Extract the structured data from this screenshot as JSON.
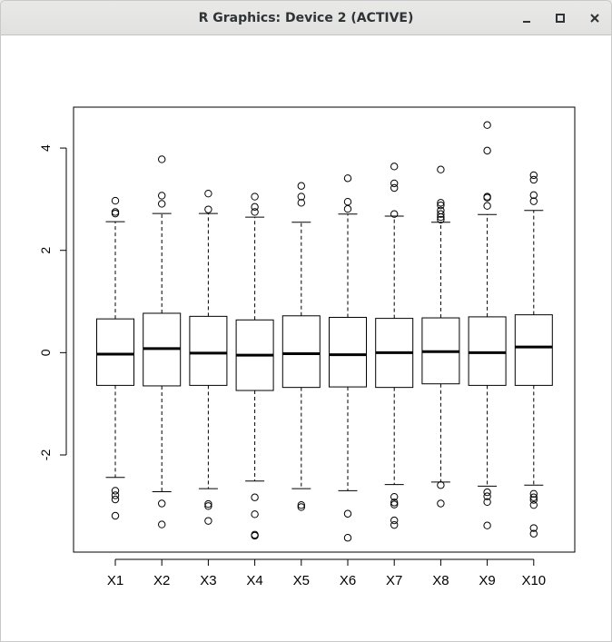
{
  "window": {
    "title": "R Graphics: Device 2 (ACTIVE)",
    "buttons": [
      {
        "name": "minimize",
        "icon": "minimize-icon"
      },
      {
        "name": "maximize",
        "icon": "maximize-icon"
      },
      {
        "name": "close",
        "icon": "close-icon"
      }
    ]
  },
  "chart_data": {
    "type": "boxplot",
    "title": "",
    "xlabel": "",
    "ylabel": "",
    "ylim": [
      -3.9,
      4.8
    ],
    "yticks": [
      -2,
      0,
      2,
      4
    ],
    "ytick_labels": [
      "-2",
      "0",
      "2",
      "4"
    ],
    "categories": [
      "X1",
      "X2",
      "X3",
      "X4",
      "X5",
      "X6",
      "X7",
      "X8",
      "X9",
      "X10"
    ],
    "boxes": [
      {
        "name": "X1",
        "whisker_low": -2.44,
        "q1": -0.64,
        "median": -0.03,
        "q3": 0.66,
        "whisker_high": 2.56,
        "outliers": [
          2.97,
          2.75,
          2.72,
          -2.7,
          -2.79,
          -2.87,
          -3.19
        ]
      },
      {
        "name": "X2",
        "whisker_low": -2.72,
        "q1": -0.65,
        "median": 0.08,
        "q3": 0.77,
        "whisker_high": 2.72,
        "outliers": [
          3.78,
          3.07,
          2.91,
          -2.95,
          -3.36
        ]
      },
      {
        "name": "X3",
        "whisker_low": -2.66,
        "q1": -0.64,
        "median": -0.01,
        "q3": 0.71,
        "whisker_high": 2.72,
        "outliers": [
          3.11,
          2.8,
          -2.96,
          -3.0,
          -3.29
        ]
      },
      {
        "name": "X4",
        "whisker_low": -2.51,
        "q1": -0.74,
        "median": -0.05,
        "q3": 0.64,
        "whisker_high": 2.65,
        "outliers": [
          3.05,
          2.85,
          2.75,
          -2.83,
          -3.16,
          -3.56,
          -3.58
        ]
      },
      {
        "name": "X5",
        "whisker_low": -2.66,
        "q1": -0.68,
        "median": -0.02,
        "q3": 0.72,
        "whisker_high": 2.55,
        "outliers": [
          3.26,
          3.05,
          2.93,
          -2.98,
          -3.02
        ]
      },
      {
        "name": "X6",
        "whisker_low": -2.7,
        "q1": -0.67,
        "median": -0.04,
        "q3": 0.69,
        "whisker_high": 2.71,
        "outliers": [
          3.41,
          2.95,
          2.81,
          -3.15,
          -3.62
        ]
      },
      {
        "name": "X7",
        "whisker_low": -2.58,
        "q1": -0.68,
        "median": 0.0,
        "q3": 0.67,
        "whisker_high": 2.67,
        "outliers": [
          3.64,
          3.31,
          3.22,
          2.71,
          -2.82,
          -2.93,
          -2.97,
          -3.28,
          -3.37
        ]
      },
      {
        "name": "X8",
        "whisker_low": -2.53,
        "q1": -0.61,
        "median": 0.02,
        "q3": 0.68,
        "whisker_high": 2.55,
        "outliers": [
          3.58,
          2.93,
          2.88,
          2.78,
          2.71,
          2.65,
          2.6,
          -2.59,
          -2.95
        ]
      },
      {
        "name": "X9",
        "whisker_low": -2.61,
        "q1": -0.64,
        "median": 0.0,
        "q3": 0.7,
        "whisker_high": 2.7,
        "outliers": [
          4.45,
          3.95,
          3.05,
          3.03,
          2.87,
          -2.73,
          -2.81,
          -2.92,
          -3.38
        ]
      },
      {
        "name": "X10",
        "whisker_low": -2.59,
        "q1": -0.64,
        "median": 0.11,
        "q3": 0.74,
        "whisker_high": 2.78,
        "outliers": [
          3.47,
          3.38,
          3.08,
          2.96,
          -2.76,
          -2.83,
          -2.88,
          -2.98,
          -3.43,
          -3.54
        ]
      }
    ]
  }
}
